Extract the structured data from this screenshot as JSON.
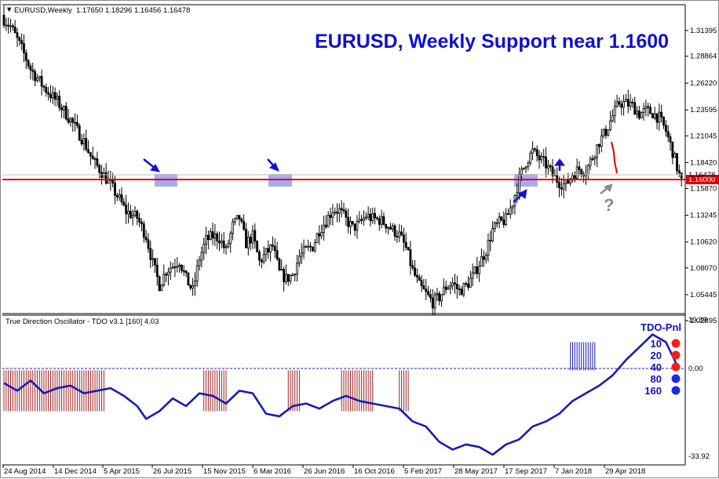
{
  "chart_header": {
    "symbol_label": "EURUSD,Weekly",
    "ohlc": "1.17650 1.18296 1.16456 1.16478"
  },
  "annotation_title": "EURUSD, Weekly Support near 1.1600",
  "question_mark": "?",
  "oscillator": {
    "label": "True Direction Oscillator - TDO v3.1 [160] 4.03",
    "axis_labels": [
      "19.39",
      "0.00",
      "-33.92"
    ]
  },
  "tdo_pnl": {
    "title": "TDO-Pnl",
    "rows": [
      {
        "period": "10",
        "color": "#ff1a1a"
      },
      {
        "period": "20",
        "color": "#ff1a1a"
      },
      {
        "period": "40",
        "color": "#ff1a1a"
      },
      {
        "period": "80",
        "color": "#1a2ae6"
      },
      {
        "period": "160",
        "color": "#1a2ae6"
      }
    ]
  },
  "colors": {
    "bull_bear": "#000000",
    "support_line": "#e00000",
    "annotation_blue": "#1010d0",
    "highlight": "#9a9cf0",
    "oscillator_line": "#1a1ab8",
    "histogram_neg": "#a02020",
    "histogram_pos": "#1a1ab8"
  },
  "chart_data": [
    {
      "type": "candlestick",
      "title": "EURUSD, Weekly Support near 1.1600",
      "y_ticks": [
        "1.31395",
        "1.28864",
        "1.26220",
        "1.23595",
        "1.21045",
        "1.18420",
        "1.15870",
        "1.13245",
        "1.10620",
        "1.08070",
        "1.05445",
        "1.02895"
      ],
      "ylim": [
        1.02895,
        1.32
      ],
      "x_ticks": [
        "24 Aug 2014",
        "14 Dec 2014",
        "5 Apr 2015",
        "26 Jul 2015",
        "15 Nov 2015",
        "6 Mar 2016",
        "26 Jun 2016",
        "16 Oct 2016",
        "5 Feb 2017",
        "28 May 2017",
        "17 Sep 2017",
        "7 Jan 2018",
        "29 Apr 2018"
      ],
      "close_path": [
        [
          0,
          1.325
        ],
        [
          3,
          1.318
        ],
        [
          8,
          1.296
        ],
        [
          12,
          1.276
        ],
        [
          18,
          1.258
        ],
        [
          24,
          1.244
        ],
        [
          30,
          1.226
        ],
        [
          36,
          1.205
        ],
        [
          40,
          1.186
        ],
        [
          44,
          1.175
        ],
        [
          48,
          1.162
        ],
        [
          52,
          1.148
        ],
        [
          55,
          1.136
        ],
        [
          60,
          1.13
        ],
        [
          64,
          1.112
        ],
        [
          67,
          1.085
        ],
        [
          70,
          1.064
        ],
        [
          73,
          1.078
        ],
        [
          76,
          1.083
        ],
        [
          79,
          1.088
        ],
        [
          82,
          1.07
        ],
        [
          85,
          1.058
        ],
        [
          88,
          1.09
        ],
        [
          91,
          1.108
        ],
        [
          94,
          1.112
        ],
        [
          97,
          1.11
        ],
        [
          100,
          1.097
        ],
        [
          103,
          1.122
        ],
        [
          106,
          1.13
        ],
        [
          109,
          1.105
        ],
        [
          112,
          1.112
        ],
        [
          115,
          1.087
        ],
        [
          118,
          1.095
        ],
        [
          121,
          1.102
        ],
        [
          124,
          1.076
        ],
        [
          127,
          1.07
        ],
        [
          130,
          1.074
        ],
        [
          133,
          1.092
        ],
        [
          136,
          1.098
        ],
        [
          139,
          1.102
        ],
        [
          142,
          1.118
        ],
        [
          145,
          1.127
        ],
        [
          148,
          1.138
        ],
        [
          151,
          1.137
        ],
        [
          154,
          1.128
        ],
        [
          157,
          1.12
        ],
        [
          160,
          1.124
        ],
        [
          163,
          1.132
        ],
        [
          166,
          1.129
        ],
        [
          169,
          1.128
        ],
        [
          172,
          1.124
        ],
        [
          175,
          1.118
        ],
        [
          178,
          1.113
        ],
        [
          181,
          1.1
        ],
        [
          184,
          1.078
        ],
        [
          187,
          1.063
        ],
        [
          190,
          1.055
        ],
        [
          193,
          1.047
        ],
        [
          196,
          1.052
        ],
        [
          199,
          1.062
        ],
        [
          202,
          1.066
        ],
        [
          205,
          1.058
        ],
        [
          208,
          1.063
        ],
        [
          211,
          1.072
        ],
        [
          214,
          1.085
        ],
        [
          217,
          1.098
        ],
        [
          220,
          1.118
        ],
        [
          223,
          1.125
        ],
        [
          226,
          1.128
        ],
        [
          229,
          1.145
        ],
        [
          232,
          1.168
        ],
        [
          235,
          1.185
        ],
        [
          238,
          1.195
        ],
        [
          241,
          1.188
        ],
        [
          244,
          1.182
        ],
        [
          247,
          1.172
        ],
        [
          250,
          1.165
        ],
        [
          253,
          1.162
        ],
        [
          256,
          1.173
        ],
        [
          259,
          1.178
        ],
        [
          262,
          1.176
        ],
        [
          265,
          1.19
        ],
        [
          268,
          1.205
        ],
        [
          271,
          1.215
        ],
        [
          274,
          1.23
        ],
        [
          277,
          1.243
        ],
        [
          280,
          1.242
        ],
        [
          283,
          1.24
        ],
        [
          286,
          1.232
        ],
        [
          289,
          1.235
        ],
        [
          292,
          1.233
        ],
        [
          295,
          1.228
        ],
        [
          298,
          1.215
        ],
        [
          301,
          1.195
        ],
        [
          304,
          1.172
        ],
        [
          305,
          1.1648
        ]
      ],
      "support_level": 1.16,
      "support_label": "1.16000",
      "current_price_label": "1.16478"
    },
    {
      "type": "line",
      "title": "True Direction Oscillator - TDO v3.1 [160] 4.03",
      "ylim": [
        -33.92,
        19.39
      ],
      "series": [
        {
          "name": "TDO",
          "x": [
            0,
            6,
            12,
            18,
            24,
            30,
            36,
            42,
            48,
            54,
            60,
            64,
            70,
            76,
            82,
            88,
            94,
            100,
            106,
            112,
            118,
            124,
            130,
            136,
            142,
            148,
            154,
            160,
            166,
            172,
            178,
            184,
            190,
            196,
            202,
            208,
            214,
            220,
            226,
            232,
            238,
            244,
            250,
            256,
            262,
            268,
            274,
            280,
            286,
            292,
            298,
            303
          ],
          "values": [
            -5,
            -8,
            -4,
            -9,
            -7,
            -6,
            -9,
            -8,
            -7,
            -10,
            -14,
            -19,
            -16,
            -11,
            -14,
            -9,
            -10,
            -13,
            -8,
            -9,
            -17,
            -18,
            -14,
            -13,
            -15,
            -12,
            -10,
            -12,
            -13,
            -14,
            -15,
            -20,
            -22,
            -28,
            -31,
            -29,
            -30,
            -33,
            -29,
            -27,
            -22,
            -20,
            -17,
            -12,
            -9,
            -6,
            -2,
            4,
            9,
            14,
            11,
            2
          ]
        }
      ]
    }
  ]
}
